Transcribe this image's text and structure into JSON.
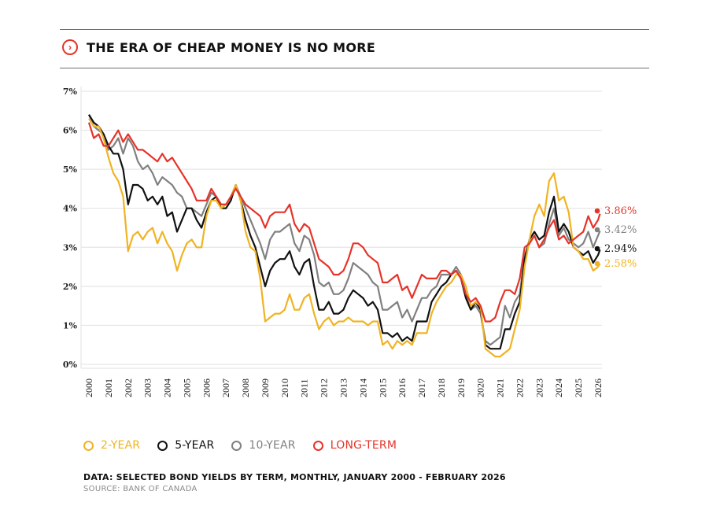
{
  "header": {
    "title": "THE ERA OF CHEAP MONEY IS NO MORE",
    "icon": "chevron-right-circle-icon"
  },
  "legend": [
    {
      "label": "2-YEAR",
      "color": "#f0b323"
    },
    {
      "label": "5-YEAR",
      "color": "#111111"
    },
    {
      "label": "10-YEAR",
      "color": "#808080"
    },
    {
      "label": "LONG-TERM",
      "color": "#e63329"
    }
  ],
  "footer": {
    "note": "DATA: SELECTED BOND YIELDS BY TERM, MONTHLY, JANUARY 2000 - FEBRUARY 2026",
    "source": "SOURCE: BANK OF CANADA"
  },
  "chart_data": {
    "type": "line",
    "title": "THE ERA OF CHEAP MONEY IS NO MORE",
    "xlabel": "",
    "ylabel": "",
    "xlim": [
      2000,
      2026
    ],
    "ylim": [
      0,
      7
    ],
    "grid": true,
    "legend_position": "bottom-left",
    "x_ticks": [
      "2000",
      "2001",
      "2002",
      "2003",
      "2004",
      "2005",
      "2006",
      "2007",
      "2008",
      "2009",
      "2010",
      "2011",
      "2012",
      "2013",
      "2014",
      "2015",
      "2016",
      "2017",
      "2018",
      "2019",
      "2020",
      "2021",
      "2022",
      "2023",
      "2024",
      "2025",
      "2026"
    ],
    "y_ticks": [
      "0%",
      "1%",
      "2%",
      "3%",
      "4%",
      "5%",
      "6%",
      "7%"
    ],
    "x": [
      2000.0,
      2000.25,
      2000.5,
      2000.75,
      2001.0,
      2001.25,
      2001.5,
      2001.75,
      2002.0,
      2002.25,
      2002.5,
      2002.75,
      2003.0,
      2003.25,
      2003.5,
      2003.75,
      2004.0,
      2004.25,
      2004.5,
      2004.75,
      2005.0,
      2005.25,
      2005.5,
      2005.75,
      2006.0,
      2006.25,
      2006.5,
      2006.75,
      2007.0,
      2007.25,
      2007.5,
      2007.75,
      2008.0,
      2008.25,
      2008.5,
      2008.75,
      2009.0,
      2009.25,
      2009.5,
      2009.75,
      2010.0,
      2010.25,
      2010.5,
      2010.75,
      2011.0,
      2011.25,
      2011.5,
      2011.75,
      2012.0,
      2012.25,
      2012.5,
      2012.75,
      2013.0,
      2013.25,
      2013.5,
      2013.75,
      2014.0,
      2014.25,
      2014.5,
      2014.75,
      2015.0,
      2015.25,
      2015.5,
      2015.75,
      2016.0,
      2016.25,
      2016.5,
      2016.75,
      2017.0,
      2017.25,
      2017.5,
      2017.75,
      2018.0,
      2018.25,
      2018.5,
      2018.75,
      2019.0,
      2019.25,
      2019.5,
      2019.75,
      2020.0,
      2020.25,
      2020.5,
      2020.75,
      2021.0,
      2021.25,
      2021.5,
      2021.75,
      2022.0,
      2022.25,
      2022.5,
      2022.75,
      2023.0,
      2023.25,
      2023.5,
      2023.75,
      2024.0,
      2024.25,
      2024.5,
      2024.75,
      2025.0,
      2025.25,
      2025.5,
      2025.75,
      2026.0,
      2026.1
    ],
    "series": [
      {
        "name": "2-YEAR",
        "color": "#f0b323",
        "end_label": "2.58%",
        "values": [
          6.3,
          6.1,
          6.1,
          5.8,
          5.3,
          4.9,
          4.7,
          4.3,
          2.9,
          3.3,
          3.4,
          3.2,
          3.4,
          3.5,
          3.1,
          3.4,
          3.1,
          2.9,
          2.4,
          2.8,
          3.1,
          3.2,
          3.0,
          3.0,
          3.8,
          4.2,
          4.2,
          4.0,
          4.1,
          4.3,
          4.6,
          4.2,
          3.4,
          3.0,
          2.9,
          2.2,
          1.1,
          1.2,
          1.3,
          1.3,
          1.4,
          1.8,
          1.4,
          1.4,
          1.7,
          1.8,
          1.3,
          0.9,
          1.1,
          1.2,
          1.0,
          1.1,
          1.1,
          1.2,
          1.1,
          1.1,
          1.1,
          1.0,
          1.1,
          1.1,
          0.5,
          0.6,
          0.4,
          0.6,
          0.5,
          0.6,
          0.5,
          0.8,
          0.8,
          0.8,
          1.3,
          1.6,
          1.8,
          2.0,
          2.1,
          2.3,
          2.3,
          2.0,
          1.5,
          1.6,
          1.5,
          0.4,
          0.3,
          0.2,
          0.2,
          0.3,
          0.4,
          0.9,
          1.4,
          2.5,
          3.2,
          3.8,
          4.1,
          3.8,
          4.7,
          4.9,
          4.2,
          4.3,
          3.9,
          3.0,
          2.9,
          2.7,
          2.7,
          2.4,
          2.5,
          2.58
        ]
      },
      {
        "name": "5-YEAR",
        "color": "#111111",
        "end_label": "2.94%",
        "values": [
          6.4,
          6.2,
          6.1,
          5.9,
          5.6,
          5.4,
          5.4,
          5.0,
          4.1,
          4.6,
          4.6,
          4.5,
          4.2,
          4.3,
          4.1,
          4.3,
          3.8,
          3.9,
          3.4,
          3.7,
          4.0,
          4.0,
          3.7,
          3.5,
          3.9,
          4.2,
          4.3,
          4.0,
          4.0,
          4.2,
          4.6,
          4.2,
          3.7,
          3.3,
          3.0,
          2.5,
          2.0,
          2.4,
          2.6,
          2.7,
          2.7,
          2.9,
          2.5,
          2.3,
          2.6,
          2.7,
          2.0,
          1.4,
          1.4,
          1.6,
          1.3,
          1.3,
          1.4,
          1.7,
          1.9,
          1.8,
          1.7,
          1.5,
          1.6,
          1.4,
          0.8,
          0.8,
          0.7,
          0.8,
          0.6,
          0.7,
          0.6,
          1.1,
          1.1,
          1.1,
          1.6,
          1.8,
          2.0,
          2.1,
          2.3,
          2.4,
          2.2,
          1.7,
          1.4,
          1.6,
          1.4,
          0.5,
          0.4,
          0.4,
          0.4,
          0.9,
          0.9,
          1.3,
          1.6,
          2.7,
          3.2,
          3.4,
          3.2,
          3.3,
          3.9,
          4.3,
          3.4,
          3.6,
          3.4,
          3.0,
          2.9,
          2.8,
          2.9,
          2.6,
          2.8,
          2.94
        ]
      },
      {
        "name": "10-YEAR",
        "color": "#808080",
        "end_label": "3.42%",
        "values": [
          6.4,
          6.1,
          6.0,
          5.9,
          5.5,
          5.6,
          5.8,
          5.4,
          5.8,
          5.6,
          5.2,
          5.0,
          5.1,
          4.9,
          4.6,
          4.8,
          4.7,
          4.6,
          4.4,
          4.3,
          4.0,
          4.0,
          3.9,
          3.8,
          4.1,
          4.4,
          4.3,
          4.1,
          4.1,
          4.3,
          4.6,
          4.3,
          4.0,
          3.7,
          3.4,
          3.1,
          2.7,
          3.2,
          3.4,
          3.4,
          3.5,
          3.6,
          3.1,
          2.9,
          3.3,
          3.2,
          2.8,
          2.1,
          2.0,
          2.1,
          1.8,
          1.8,
          1.9,
          2.2,
          2.6,
          2.5,
          2.4,
          2.3,
          2.1,
          2.0,
          1.4,
          1.4,
          1.5,
          1.6,
          1.2,
          1.4,
          1.1,
          1.4,
          1.7,
          1.7,
          1.9,
          2.0,
          2.3,
          2.3,
          2.3,
          2.5,
          2.3,
          1.8,
          1.4,
          1.5,
          1.3,
          0.6,
          0.5,
          0.6,
          0.7,
          1.5,
          1.2,
          1.6,
          1.8,
          2.8,
          3.1,
          3.3,
          3.0,
          3.1,
          3.6,
          4.0,
          3.3,
          3.5,
          3.2,
          3.1,
          3.0,
          3.1,
          3.4,
          3.0,
          3.3,
          3.42
        ]
      },
      {
        "name": "LONG-TERM",
        "color": "#e63329",
        "end_label": "3.86%",
        "values": [
          6.2,
          5.8,
          5.9,
          5.6,
          5.6,
          5.8,
          6.0,
          5.7,
          5.9,
          5.7,
          5.5,
          5.5,
          5.4,
          5.3,
          5.2,
          5.4,
          5.2,
          5.3,
          5.1,
          4.9,
          4.7,
          4.5,
          4.2,
          4.2,
          4.2,
          4.5,
          4.3,
          4.1,
          4.1,
          4.3,
          4.5,
          4.3,
          4.1,
          4.0,
          3.9,
          3.8,
          3.5,
          3.8,
          3.9,
          3.9,
          3.9,
          4.1,
          3.6,
          3.4,
          3.6,
          3.5,
          3.1,
          2.7,
          2.6,
          2.5,
          2.3,
          2.3,
          2.4,
          2.7,
          3.1,
          3.1,
          3.0,
          2.8,
          2.7,
          2.6,
          2.1,
          2.1,
          2.2,
          2.3,
          1.9,
          2.0,
          1.7,
          2.0,
          2.3,
          2.2,
          2.2,
          2.2,
          2.4,
          2.4,
          2.3,
          2.4,
          2.2,
          1.8,
          1.6,
          1.7,
          1.5,
          1.1,
          1.1,
          1.2,
          1.6,
          1.9,
          1.9,
          1.8,
          2.2,
          3.0,
          3.1,
          3.3,
          3.0,
          3.2,
          3.5,
          3.7,
          3.2,
          3.3,
          3.1,
          3.2,
          3.3,
          3.4,
          3.8,
          3.5,
          3.7,
          3.86
        ]
      }
    ]
  }
}
